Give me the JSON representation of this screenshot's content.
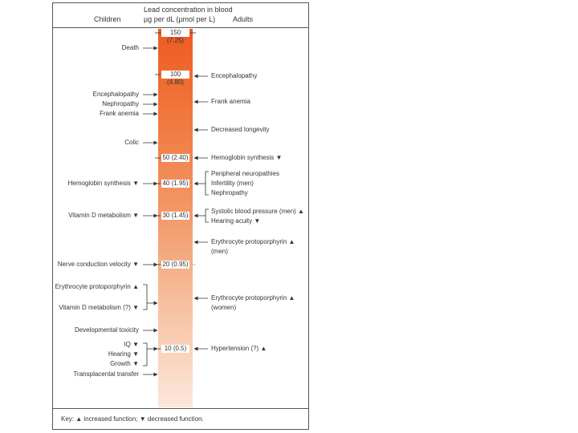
{
  "header": {
    "children": "Children",
    "adults": "Adults",
    "title_line1": "Lead concentration in blood",
    "title_line2": "µg per dL (µmol per L)"
  },
  "levels": [
    "150 (7.25)",
    "100 (4.80)",
    "50 (2.40)",
    "40 (1.95)",
    "30 (1.45)",
    "20 (0.95)",
    "10 (0.5)"
  ],
  "children": {
    "death": "Death",
    "encephalopathy": "Encephalopathy",
    "nephropathy": "Nephropathy",
    "frank_anemia": "Frank anemia",
    "colic": "Colic",
    "hemoglobin": "Hemoglobin synthesis ▼",
    "vitamin_d": "Vitamin D metabolism ▼",
    "nerve": "Nerve conduction velocity ▼",
    "erythrocyte": "Erythrocyte protoporphyrin ▲",
    "vitamin_d2": "Vitamin D metabolism (?) ▼",
    "developmental": "Developmental toxicity",
    "iq": "IQ ▼",
    "hearing": "Hearing ▼",
    "growth": "Growth ▼",
    "transplacental": "Transplacental transfer"
  },
  "adults": {
    "encephalopathy": "Encephalopathy",
    "frank_anemia": "Frank anemia",
    "longevity": "Decreased longevity",
    "hemoglobin": "Hemoglobin synthesis ▼",
    "peripheral": "Peripheral neuropathies",
    "infertility": "Infertility (men)",
    "nephropathy": "Nephropathy",
    "systolic": "Systolic blood pressure (men) ▲",
    "hearing": "Hearing acuity ▼",
    "erythro_men_1": "Erythrocyte protoporphyrin ▲",
    "erythro_men_2": "(men)",
    "erythro_women_1": "Erythrocyte protoporphyrin ▲",
    "erythro_women_2": "(women)",
    "hypertension": "Hypertension (?) ▲"
  },
  "key": "Key: ▲ increased function; ▼ decreased function."
}
